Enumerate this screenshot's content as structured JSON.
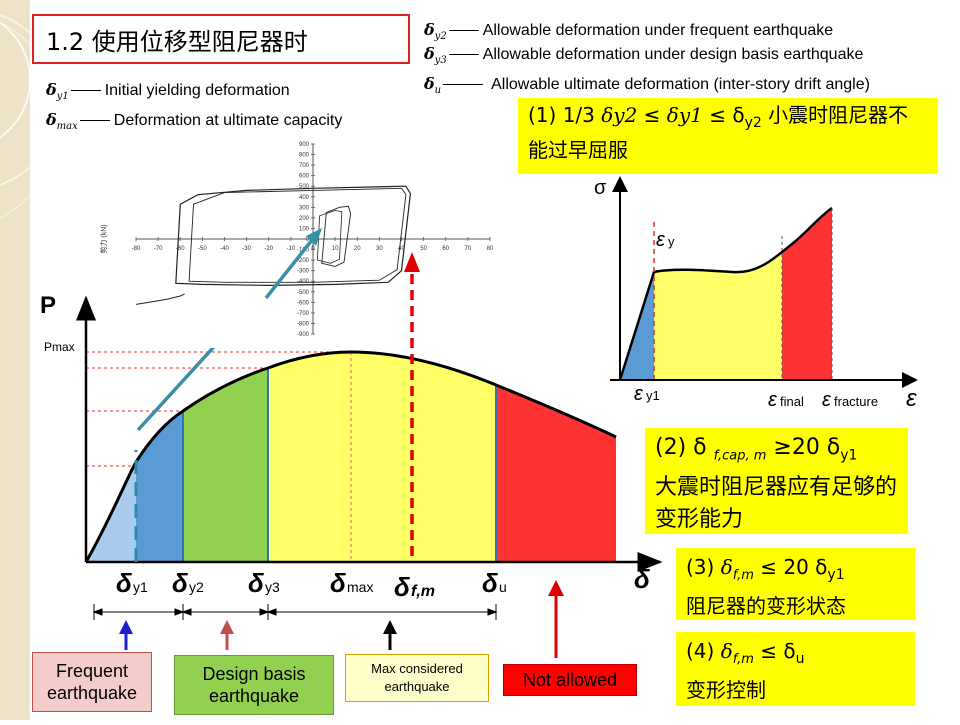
{
  "title": "1.2  使用位移型阻尼器时",
  "legend_left": [
    {
      "symbol": "δ",
      "sub": "y1",
      "text": "Initial yielding deformation"
    },
    {
      "symbol": "δ",
      "sub": "max",
      "text": "Deformation at ultimate capacity"
    }
  ],
  "legend_right": [
    {
      "symbol": "δ",
      "sub": "y2",
      "text": "Allowable deformation under frequent earthquake"
    },
    {
      "symbol": "δ",
      "sub": "y3",
      "text": "Allowable deformation under design basis earthquake"
    },
    {
      "symbol": "δ",
      "sub": "u",
      "text": "Allowable ultimate deformation (inter-story drift angle)"
    }
  ],
  "boxes": {
    "b1": {
      "pre": "(1)  1/3 ",
      "s1": "δy2",
      "mid1": " ≤ ",
      "s2": "δy1",
      "mid2": " ≤ δ",
      "sub": "y2",
      "post": "   小震时阻尼器不能过早屈服"
    },
    "b2": {
      "pre": "(2)  δ ",
      "sub": "f,cap, m",
      "mid": " ≥20 δ",
      "sub2": "y1",
      "post": "大震时阻尼器应有足够的变形能力"
    },
    "b3": {
      "pre": "(3)  ",
      "sym": "δ",
      "sub": "f,m",
      "mid": " ≤ 20 δ",
      "sub2": "y1",
      "post": "阻尼器的变形状态"
    },
    "b4": {
      "pre": "(4)  ",
      "sym": "δ",
      "sub": "f,m",
      "mid": " ≤ δ",
      "sub2": "u",
      "post": "  变形控制"
    }
  },
  "main_chart": {
    "y_label": "P",
    "pmax_label": "Pmax",
    "x_symbol": "δ",
    "ticks": [
      {
        "sym": "δ",
        "sub": "y1"
      },
      {
        "sym": "δ",
        "sub": "y2"
      },
      {
        "sym": "δ",
        "sub": "y3"
      },
      {
        "sym": "δ",
        "sub": "max"
      },
      {
        "sym": "δ",
        "sub": "f,m"
      },
      {
        "sym": "δ",
        "sub": "u"
      }
    ],
    "region_colors": [
      "#5b9bd5",
      "#92d050",
      "#ffff66",
      "#ff3333"
    ]
  },
  "categories": [
    {
      "label": "Frequent earthquake",
      "bg": "#f4cccc",
      "border": "#c0504d",
      "arrow_color": "#1f1fd0"
    },
    {
      "label": "Design basis earthquake",
      "bg": "#92d050",
      "border": "#6a9a3a",
      "arrow_color": "#c0504d"
    },
    {
      "label": "Max considered earthquake",
      "bg": "#ffffcc",
      "border": "#e0a000",
      "arrow_color": "#000000"
    },
    {
      "label": "Not allowed",
      "bg": "#ff0000",
      "border": "#c00000",
      "arrow_color": "#e00000"
    }
  ],
  "hysteresis": {
    "y_axis_label": "剪力 (kN)",
    "x_ticks": [
      "-80",
      "-70",
      "-60",
      "-50",
      "-40",
      "-30",
      "-20",
      "-10",
      "0",
      "10",
      "20",
      "30",
      "40",
      "50",
      "60",
      "70",
      "80"
    ],
    "y_ticks": [
      "900",
      "800",
      "700",
      "600",
      "500",
      "400",
      "300",
      "200",
      "100",
      "0",
      "-100",
      "-200",
      "-300",
      "-400",
      "-500",
      "-600",
      "-700",
      "-800",
      "-900"
    ],
    "xlim": [
      -80,
      80
    ],
    "ylim": [
      -900,
      900
    ]
  },
  "stress_strain": {
    "y_label": "σ",
    "x_label": "ε",
    "eps_y": {
      "sym": "ε",
      "sub": "y"
    },
    "eps_y1": {
      "sym": "ε",
      "sub": "y1"
    },
    "eps_final": {
      "sym": "ε",
      "sub": "final"
    },
    "eps_fracture": {
      "sym": "ε",
      "sub": "fracture"
    }
  }
}
